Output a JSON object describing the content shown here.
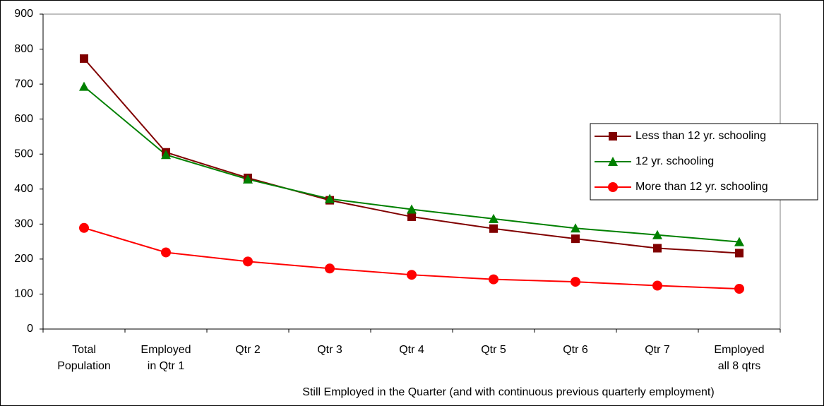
{
  "chart_data": {
    "type": "line",
    "x_label": "Still Employed in the Quarter (and with continuous previous quarterly employment)",
    "categories": [
      "Total\nPopulation",
      "Employed\nin Qtr 1",
      "Qtr 2",
      "Qtr 3",
      "Qtr 4",
      "Qtr 5",
      "Qtr 6",
      "Qtr 7",
      "Employed\nall 8 qtrs"
    ],
    "series": [
      {
        "name": "Less than 12 yr. schooling",
        "color": "#800000",
        "marker": "square",
        "values": [
          773,
          505,
          432,
          368,
          321,
          287,
          258,
          231,
          217
        ]
      },
      {
        "name": "12 yr. schooling",
        "color": "#008000",
        "marker": "triangle",
        "values": [
          693,
          498,
          428,
          372,
          342,
          315,
          288,
          269,
          249
        ]
      },
      {
        "name": "More than 12 yr. schooling",
        "color": "#ff0000",
        "marker": "circle",
        "values": [
          289,
          219,
          193,
          173,
          155,
          142,
          135,
          124,
          115
        ]
      }
    ],
    "ylim": [
      0,
      900
    ],
    "yticks": [
      0,
      100,
      200,
      300,
      400,
      500,
      600,
      700,
      800,
      900
    ],
    "grid": false,
    "legend": "right"
  }
}
